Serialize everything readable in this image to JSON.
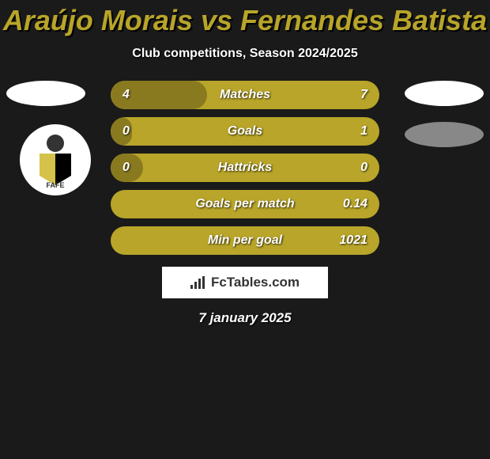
{
  "title": "Araújo Morais vs Fernandes Batista",
  "subtitle": "Club competitions, Season 2024/2025",
  "date": "7 january 2025",
  "logo_text": "FcTables.com",
  "badge_text": "FAFE",
  "colors": {
    "accent": "#b8a529",
    "accent_dark": "#8a7a1f",
    "background": "#1a1a1a"
  },
  "bars": [
    {
      "label": "Matches",
      "left": "4",
      "right": "7",
      "fill_pct": 36
    },
    {
      "label": "Goals",
      "left": "0",
      "right": "1",
      "fill_pct": 8
    },
    {
      "label": "Hattricks",
      "left": "0",
      "right": "0",
      "fill_pct": 12
    },
    {
      "label": "Goals per match",
      "left": "",
      "right": "0.14",
      "fill_pct": 0
    },
    {
      "label": "Min per goal",
      "left": "",
      "right": "1021",
      "fill_pct": 0
    }
  ]
}
